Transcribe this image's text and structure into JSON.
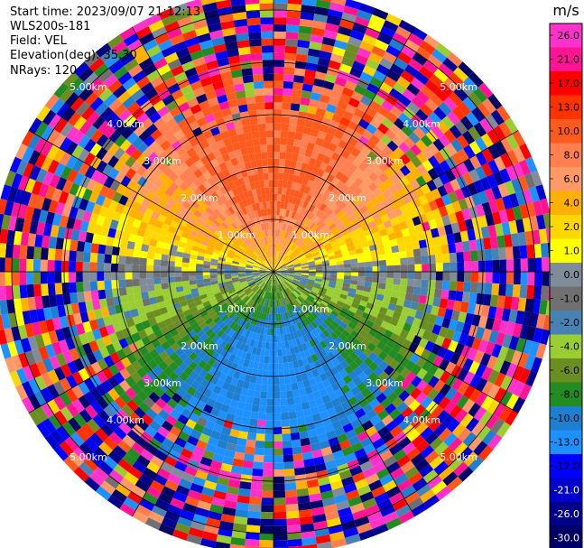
{
  "header": {
    "start_time": "Start time: 2023/09/07 21:12:13",
    "instrument": "WLS200s-181",
    "field": "Field: VEL",
    "elevation": "Elevation(deg): 35.30",
    "nrays": "NRays: 120"
  },
  "chart_data": {
    "type": "heatmap",
    "projection": "polar-ppi",
    "field": "VEL",
    "units": "m/s",
    "n_rays": 120,
    "elevation_deg": 35.3,
    "range_rings_km": [
      1.0,
      2.0,
      3.0,
      4.0,
      5.0
    ],
    "range_ring_labels": [
      "1.00km",
      "2.00km",
      "3.00km",
      "4.00km",
      "5.00km"
    ],
    "max_range_km": 5.4,
    "azimuth_spokes_deg": [
      0,
      30,
      60,
      90,
      120,
      150,
      180,
      210,
      240,
      270,
      300,
      330
    ],
    "colorbar": {
      "label": "m/s",
      "tick_labels": [
        "26.0",
        "21.0",
        "17.0",
        "13.0",
        "10.0",
        "8.0",
        "6.0",
        "4.0",
        "2.0",
        "1.0",
        "0.0",
        "-1.0",
        "-2.0",
        "-4.0",
        "-6.0",
        "-8.0",
        "-10.0",
        "-13.0",
        "-17.0",
        "-21.0",
        "-26.0",
        "-30.0"
      ],
      "colors": [
        "#ff33cc",
        "#ff1493",
        "#ff0000",
        "#ff3300",
        "#ff5a1e",
        "#ff7f50",
        "#ff9966",
        "#ffb000",
        "#ffd700",
        "#ffff00",
        "#7f8c9a",
        "#707070",
        "#4682b4",
        "#9acd32",
        "#6b8e23",
        "#228b22",
        "#1e7fd0",
        "#1e90ff",
        "#0000ff",
        "#0000cd",
        "#00008b",
        "#000066"
      ]
    }
  }
}
